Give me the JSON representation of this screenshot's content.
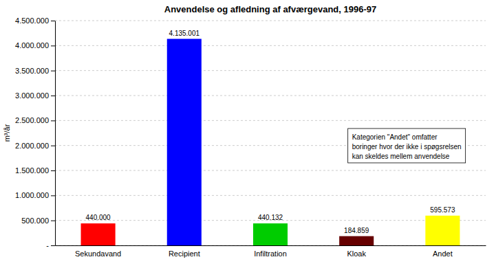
{
  "chart_data": {
    "type": "bar",
    "title": "Anvendelse og afledning af afværgevand, 1996-97",
    "categories": [
      "Sekundavand",
      "Recipient",
      "Infiltration",
      "Kloak",
      "Andet"
    ],
    "values": [
      440000,
      4135001,
      440132,
      184859,
      595573
    ],
    "value_labels": [
      "440.000",
      "4.135.001",
      "440.132",
      "184.859",
      "595.573"
    ],
    "data_labels": true,
    "colors": [
      "#ff0000",
      "#0000ff",
      "#00cc00",
      "#660000",
      "#ffff00"
    ],
    "ylabel": "m³/år",
    "ylim": [
      0,
      4500000
    ],
    "yticks": [
      {
        "value": 0,
        "label": "-"
      },
      {
        "value": 500000,
        "label": "500.000"
      },
      {
        "value": 1000000,
        "label": "1.000.000"
      },
      {
        "value": 1500000,
        "label": "1.500.000"
      },
      {
        "value": 2000000,
        "label": "2.000.000"
      },
      {
        "value": 2500000,
        "label": "2.500.000"
      },
      {
        "value": 3000000,
        "label": "3.000.000"
      },
      {
        "value": 3500000,
        "label": "3.500.000"
      },
      {
        "value": 4000000,
        "label": "4.000.000"
      },
      {
        "value": 4500000,
        "label": "4.500.000"
      }
    ],
    "grid": true,
    "annotation": [
      "Kategorien \"Andet\" omfatter",
      "boringer hvor der ikke i spøgsrelsen",
      "kan skeldes mellem anvendelse"
    ]
  }
}
